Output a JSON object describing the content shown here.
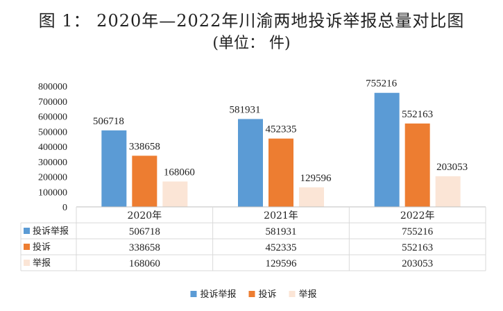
{
  "title_line1": "图 1： 2020年—2022年川渝两地投诉举报总量对比图",
  "title_line2": "(单位： 件)",
  "chart_data": {
    "type": "bar",
    "categories": [
      "2020年",
      "2021年",
      "2022年"
    ],
    "series": [
      {
        "name": "投诉举报",
        "values": [
          506718,
          581931,
          755216
        ],
        "color": "#5B9BD5"
      },
      {
        "name": "投诉",
        "values": [
          338658,
          452335,
          552163
        ],
        "color": "#ED7D31"
      },
      {
        "name": "举报",
        "values": [
          168060,
          129596,
          203053
        ],
        "color": "#FBE5D6"
      }
    ],
    "yticks": [
      "800000",
      "700000",
      "600000",
      "500000",
      "400000",
      "300000",
      "200000",
      "100000",
      "0"
    ],
    "ylim": [
      0,
      800000
    ],
    "legend_position": "bottom",
    "data_table": true
  }
}
